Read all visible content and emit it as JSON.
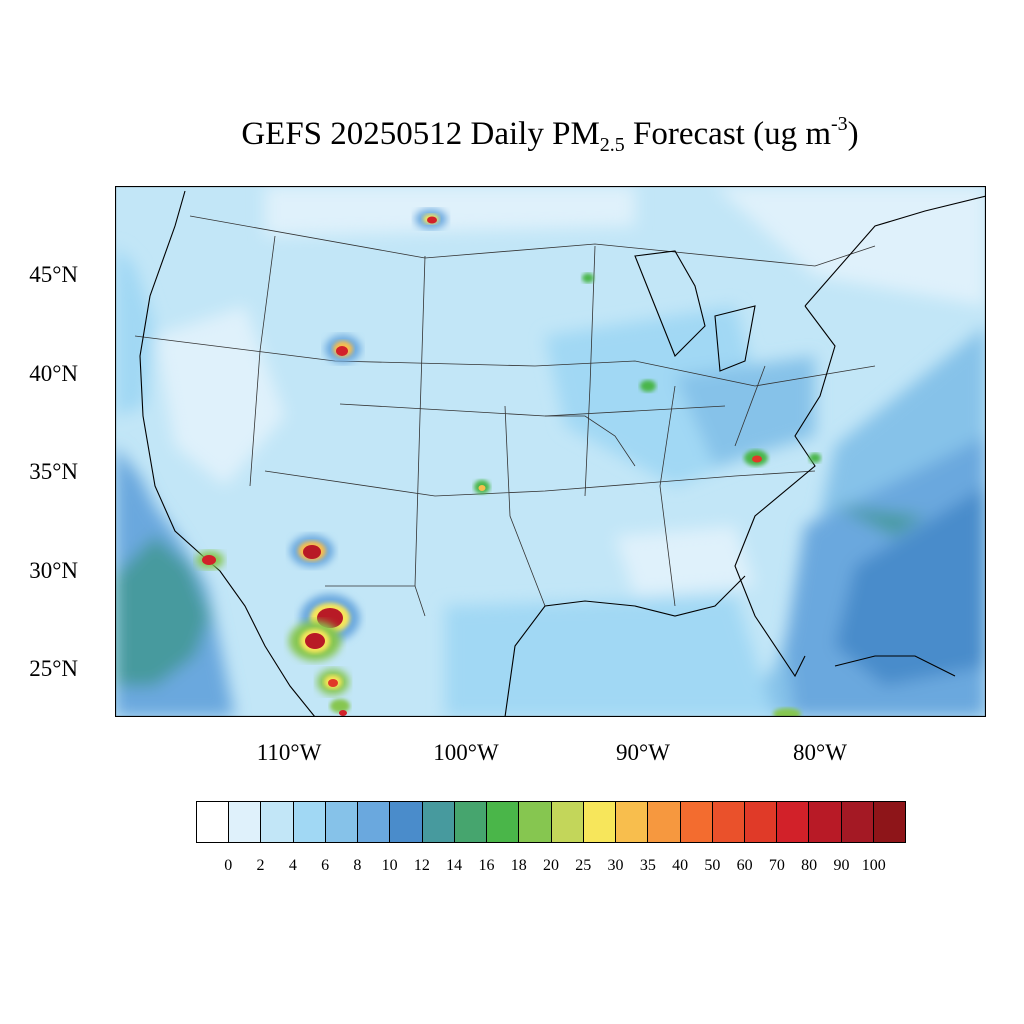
{
  "map": {
    "title_main": "GEFS 20250512 Daily PM",
    "title_sub": "2.5",
    "title_tail": " Forecast (ug m",
    "title_sup": "-3",
    "title_close": ")",
    "lat_labels": [
      "45°N",
      "40°N",
      "35°N",
      "30°N",
      "25°N"
    ],
    "lon_labels": [
      "110°W",
      "100°W",
      "90°W",
      "80°W"
    ],
    "colorbar_values": [
      "0",
      "2",
      "4",
      "6",
      "8",
      "10",
      "12",
      "14",
      "16",
      "18",
      "20",
      "25",
      "30",
      "35",
      "40",
      "50",
      "60",
      "70",
      "80",
      "90",
      "100"
    ],
    "colorbar_colors": [
      "#ffffff",
      "#dff1fb",
      "#c2e6f7",
      "#a1d8f4",
      "#86c2e9",
      "#6aa8de",
      "#4a8ccb",
      "#479a9e",
      "#46a56e",
      "#4ab649",
      "#86c650",
      "#c3d65a",
      "#f7e65b",
      "#f8be4d",
      "#f6983f",
      "#f36c2f",
      "#ea512b",
      "#e03a28",
      "#d22129",
      "#b81a26",
      "#a41924",
      "#8e1519"
    ]
  }
}
